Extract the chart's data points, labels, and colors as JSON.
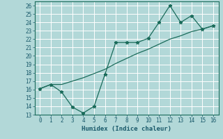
{
  "xlabel": "Humidex (Indice chaleur)",
  "bg_color": "#b2d8d8",
  "grid_color": "#ffffff",
  "line_color": "#1a6b5a",
  "tick_color": "#1a5a6b",
  "label_color": "#1a5a6b",
  "xlim": [
    -0.5,
    16.5
  ],
  "ylim": [
    13,
    26.5
  ],
  "xticks": [
    0,
    1,
    2,
    3,
    4,
    5,
    6,
    7,
    8,
    9,
    10,
    11,
    12,
    13,
    14,
    15,
    16
  ],
  "yticks": [
    13,
    14,
    15,
    16,
    17,
    18,
    19,
    20,
    21,
    22,
    23,
    24,
    25,
    26
  ],
  "curve1_x": [
    0,
    1,
    2,
    3,
    4,
    5,
    6,
    7,
    8,
    9,
    10,
    11,
    12,
    13,
    14,
    15,
    16
  ],
  "curve1_y": [
    16.1,
    16.6,
    15.7,
    13.9,
    13.2,
    14.0,
    17.8,
    21.6,
    21.6,
    21.6,
    22.1,
    24.0,
    26.0,
    24.0,
    24.8,
    23.2,
    23.6
  ],
  "curve2_x": [
    0,
    1,
    2,
    3,
    4,
    5,
    6,
    7,
    8,
    9,
    10,
    11,
    12,
    13,
    14,
    15,
    16
  ],
  "curve2_y": [
    16.1,
    16.6,
    16.6,
    17.0,
    17.4,
    17.9,
    18.4,
    19.1,
    19.7,
    20.3,
    20.8,
    21.4,
    22.0,
    22.4,
    22.9,
    23.2,
    23.6
  ],
  "tick_fontsize": 5.5,
  "xlabel_fontsize": 6.5
}
